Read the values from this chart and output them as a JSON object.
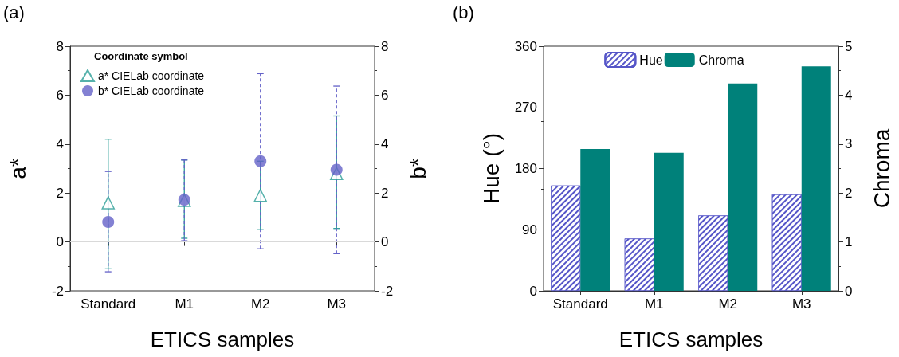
{
  "chart_data": [
    {
      "type": "scatter",
      "annotations": [
        "(a)"
      ],
      "xlabel": "ETICS samples",
      "ylabel": "a*",
      "y2label": "b*",
      "legend_title": "Coordinate symbol",
      "legend": "top left",
      "grid": false,
      "categories": [
        "Standard",
        "M1",
        "M2",
        "M3"
      ],
      "ylim": [
        -2,
        8
      ],
      "yticks": [
        -2,
        0,
        2,
        4,
        6,
        8
      ],
      "y2lim": [
        -2,
        8
      ],
      "y2ticks": [
        -2,
        0,
        2,
        4,
        6,
        8
      ],
      "ref_lines": [
        {
          "axis": "y",
          "value": 0,
          "color": "#d9d9d9"
        }
      ],
      "series": [
        {
          "name": "a* CIELab coordinate",
          "color": "#2a9d96",
          "marker": "triangle",
          "line_style": "solid",
          "values": [
            1.6,
            1.7,
            1.9,
            2.8
          ],
          "errors": [
            [
              -1.1,
              4.2
            ],
            [
              0.15,
              3.35
            ],
            [
              0.5,
              3.3
            ],
            [
              0.55,
              5.15
            ]
          ]
        },
        {
          "name": "b* CIELab coordinate",
          "color": "#6462c8",
          "marker": "circle",
          "line_style": "dashed",
          "axis": "y2",
          "values": [
            0.82,
            1.72,
            3.3,
            2.95
          ],
          "errors": [
            [
              -1.22,
              2.88
            ],
            [
              0.05,
              3.35
            ],
            [
              -0.28,
              6.88
            ],
            [
              -0.48,
              6.37
            ]
          ]
        }
      ]
    },
    {
      "type": "bar",
      "annotations": [
        "(b)"
      ],
      "xlabel": "ETICS samples",
      "ylabel": "Hue (°)",
      "y2label": "Chroma",
      "legend": "top",
      "grid": false,
      "categories": [
        "Standard",
        "M1",
        "M2",
        "M3"
      ],
      "ylim": [
        0,
        360
      ],
      "yticks": [
        0,
        90,
        180,
        270,
        360
      ],
      "y2lim": [
        0,
        5
      ],
      "y2ticks": [
        0,
        1,
        2,
        3,
        4,
        5
      ],
      "series": [
        {
          "name": "Hue",
          "color": "#5555c8",
          "values": [
            155,
            77,
            111,
            142
          ]
        },
        {
          "name": "Chroma",
          "color": "#00817a",
          "axis": "y2",
          "values": [
            2.9,
            2.82,
            4.24,
            4.59
          ]
        }
      ]
    }
  ]
}
